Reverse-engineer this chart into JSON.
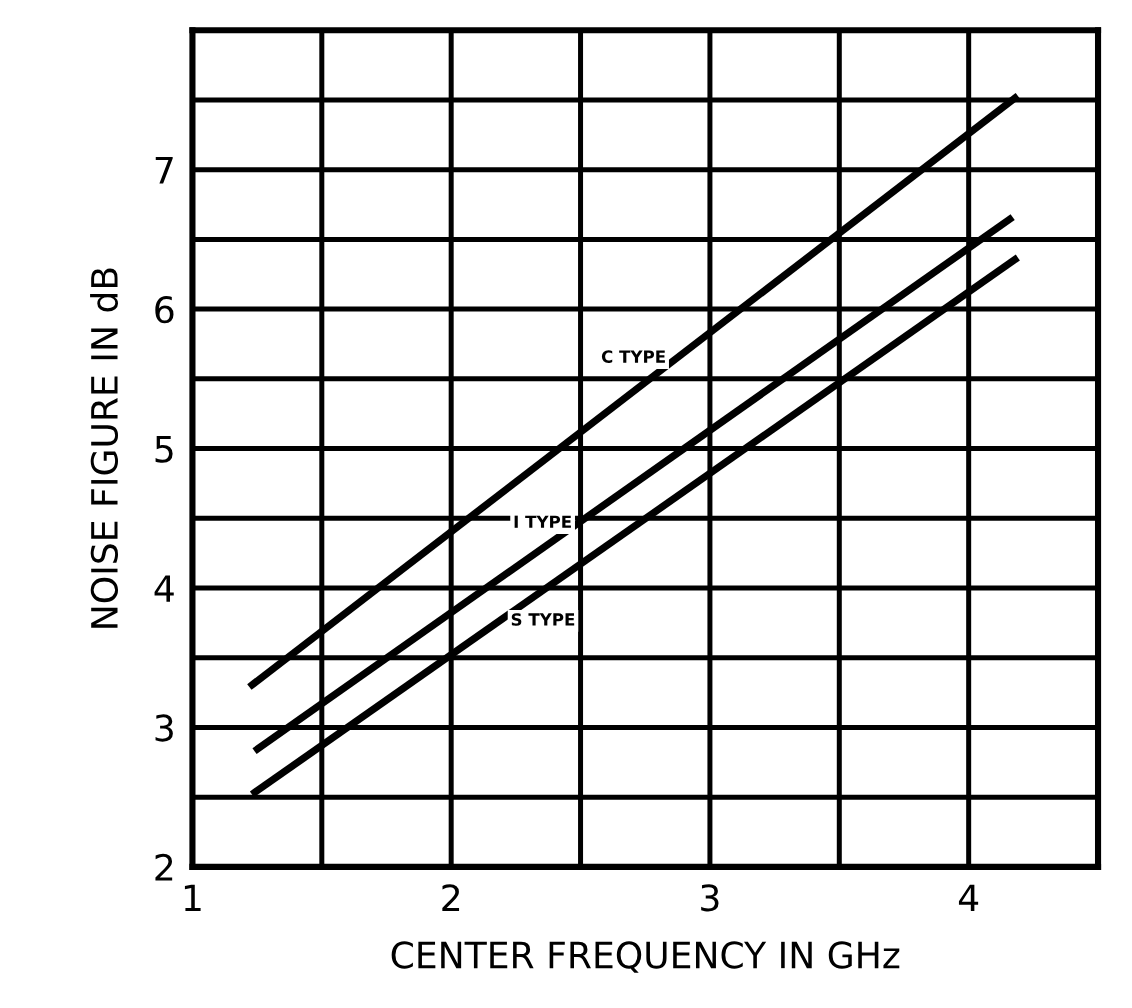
{
  "chart_data": {
    "type": "line",
    "xlabel": "CENTER FREQUENCY IN GHz",
    "ylabel": "NOISE FIGURE IN dB",
    "xlim": [
      1,
      4.5
    ],
    "ylim": [
      2,
      8
    ],
    "xticks": [
      1,
      {
        "value": 1.5,
        "label": null
      },
      2,
      {
        "value": 2.5,
        "label": null
      },
      3,
      {
        "value": 3.5,
        "label": null
      },
      4,
      {
        "value": 4.5,
        "label": null
      }
    ],
    "yticks": [
      2,
      {
        "value": 2.5,
        "label": null
      },
      3,
      {
        "value": 3.5,
        "label": null
      },
      4,
      {
        "value": 4.5,
        "label": null
      },
      5,
      {
        "value": 5.5,
        "label": null
      },
      6,
      {
        "value": 6.5,
        "label": null
      },
      7,
      {
        "value": 7.5,
        "label": null
      },
      {
        "value": 8,
        "label": null
      }
    ],
    "grid": true,
    "legend": false,
    "marker": "none",
    "line_style": "solid",
    "series": [
      {
        "name": "C TYPE",
        "color": "#000000",
        "x": [
          1.22,
          4.19
        ],
        "values": [
          3.29,
          7.53
        ]
      },
      {
        "name": "I TYPE",
        "color": "#000000",
        "x": [
          1.24,
          4.17
        ],
        "values": [
          2.83,
          6.66
        ]
      },
      {
        "name": "S TYPE",
        "color": "#000000",
        "x": [
          1.23,
          4.19
        ],
        "values": [
          2.52,
          6.37
        ]
      }
    ]
  }
}
